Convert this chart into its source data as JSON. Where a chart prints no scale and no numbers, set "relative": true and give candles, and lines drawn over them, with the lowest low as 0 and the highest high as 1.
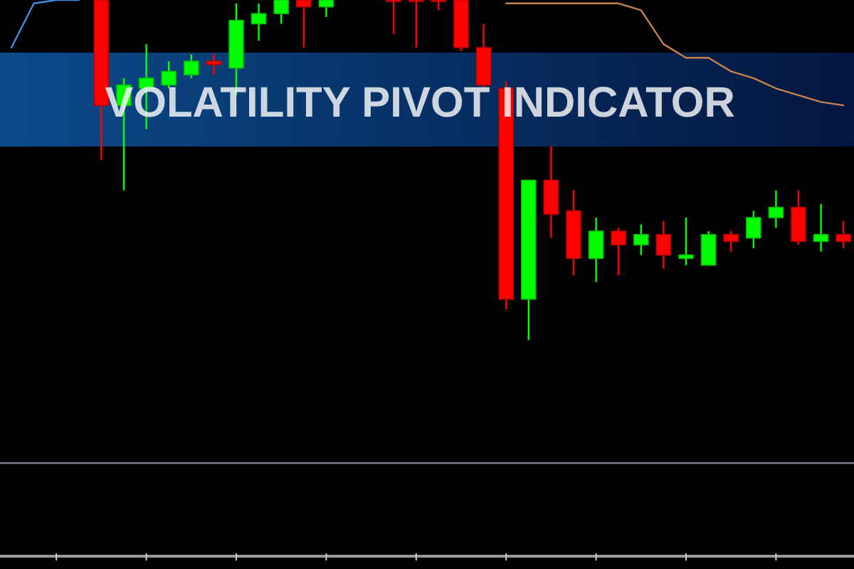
{
  "chart_data": {
    "type": "candlestick",
    "title": "VOLATILITY PIVOT INDICATOR",
    "relative": true,
    "categories": [
      null,
      null,
      null,
      null,
      null,
      null,
      null,
      null,
      null,
      null,
      null,
      null,
      null,
      null,
      null,
      null,
      null,
      null,
      null,
      null,
      null,
      null,
      null,
      null,
      null,
      null,
      null,
      null,
      null,
      null,
      null,
      null,
      null,
      null,
      null,
      null,
      null,
      null
    ],
    "ohlc": [
      null,
      null,
      null,
      null,
      [
        1,
        1,
        0.53,
        0.69
      ],
      [
        0.69,
        0.77,
        0.44,
        0.75
      ],
      [
        0.74,
        0.87,
        0.62,
        0.77
      ],
      [
        0.75,
        0.82,
        0.74,
        0.79
      ],
      [
        0.78,
        0.84,
        0.77,
        0.82
      ],
      [
        0.82,
        0.84,
        0.78,
        0.81
      ],
      [
        0.8,
        0.99,
        0.72,
        0.94
      ],
      [
        0.93,
        0.99,
        0.88,
        0.96
      ],
      [
        0.96,
        1,
        0.93,
        1
      ],
      [
        1,
        1,
        0.86,
        0.98
      ],
      [
        0.98,
        1,
        0.95,
        1
      ],
      null,
      null,
      [
        1,
        1,
        0.9,
        1
      ],
      [
        1,
        1,
        0.86,
        1
      ],
      [
        1,
        1,
        0.97,
        1
      ],
      [
        1,
        1,
        0.85,
        0.86
      ],
      [
        0.86,
        0.93,
        0.74,
        0.75
      ],
      [
        0.74,
        0.76,
        0.09,
        0.12
      ],
      [
        0.12,
        0.47,
        0,
        0.47
      ],
      [
        0.47,
        0.57,
        0.3,
        0.37
      ],
      [
        0.38,
        0.44,
        0.19,
        0.24
      ],
      [
        0.24,
        0.36,
        0.17,
        0.32
      ],
      [
        0.32,
        0.33,
        0.19,
        0.28
      ],
      [
        0.28,
        0.34,
        0.25,
        0.31
      ],
      [
        0.31,
        0.35,
        0.21,
        0.25
      ],
      [
        0.24,
        0.36,
        0.22,
        0.25
      ],
      [
        0.22,
        0.32,
        0.22,
        0.31
      ],
      [
        0.31,
        0.32,
        0.26,
        0.29
      ],
      [
        0.3,
        0.38,
        0.27,
        0.36
      ],
      [
        0.36,
        0.44,
        0.33,
        0.39
      ],
      [
        0.39,
        0.44,
        0.28,
        0.29
      ],
      [
        0.29,
        0.4,
        0.26,
        0.31
      ],
      [
        0.31,
        0.35,
        0.27,
        0.29
      ]
    ],
    "colors": [
      null,
      null,
      null,
      null,
      "#ff0000",
      "#00ff00",
      "#00ff00",
      "#00ff00",
      "#00ff00",
      "#ff0000",
      "#00ff00",
      "#00ff00",
      "#00ff00",
      "#ff0000",
      "#00ff00",
      null,
      null,
      "#ff0000",
      "#ff0000",
      "#ff0000",
      "#ff0000",
      "#ff0000",
      "#ff0000",
      "#00ff00",
      "#ff0000",
      "#ff0000",
      "#00ff00",
      "#ff0000",
      "#00ff00",
      "#ff0000",
      "#00ff00",
      "#00ff00",
      "#ff0000",
      "#00ff00",
      "#00ff00",
      "#ff0000",
      "#00ff00",
      "#ff0000"
    ],
    "series": [
      {
        "type": "line",
        "color": "#3a8ee6",
        "values": [
          0.86,
          0.99,
          1,
          1,
          null,
          null,
          null,
          null,
          null,
          null,
          null,
          null,
          null,
          null,
          null,
          null,
          null,
          null,
          null,
          null,
          null,
          null,
          null,
          null,
          null,
          null,
          null,
          null,
          null,
          null,
          null,
          null,
          null,
          null,
          null,
          null,
          null,
          null
        ]
      },
      {
        "type": "line",
        "color": "#c8824a",
        "values": [
          null,
          null,
          null,
          null,
          null,
          null,
          null,
          null,
          null,
          null,
          null,
          null,
          null,
          null,
          null,
          null,
          null,
          null,
          null,
          null,
          null,
          null,
          0.99,
          0.99,
          0.99,
          0.99,
          0.99,
          0.99,
          0.97,
          0.87,
          0.83,
          0.83,
          0.79,
          0.77,
          0.74,
          0.72,
          0.7,
          0.69
        ]
      }
    ]
  }
}
